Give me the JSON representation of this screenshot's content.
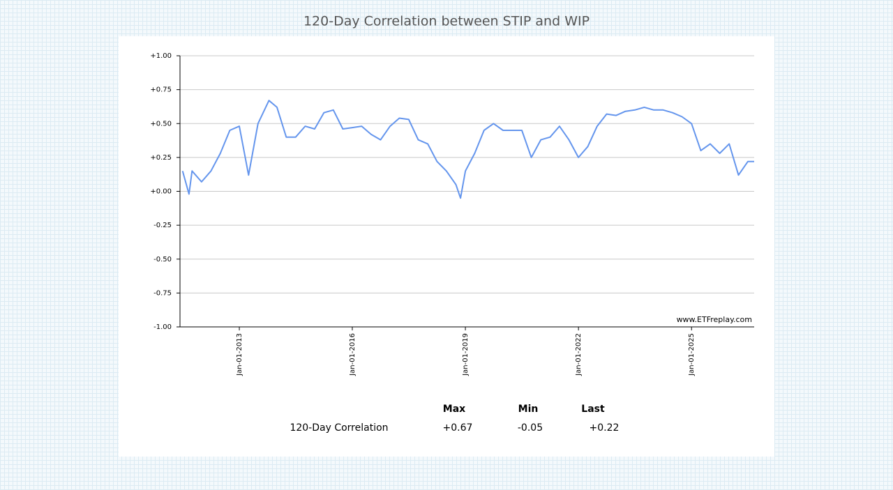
{
  "chart_data": {
    "type": "line",
    "title": "120-Day Correlation between STIP and WIP",
    "watermark": "www.ETFreplay.com",
    "color": "#6495ed",
    "grid": true,
    "xlim": [
      "2011-06-06",
      "2026-08-31"
    ],
    "ylim": [
      -1,
      1
    ],
    "xticks": [
      {
        "value": "2013-01-01",
        "label": "Jan-01-2013"
      },
      {
        "value": "2016-01-01",
        "label": "Jan-01-2016"
      },
      {
        "value": "2019-01-01",
        "label": "Jan-01-2019"
      },
      {
        "value": "2022-01-01",
        "label": "Jan-01-2022"
      },
      {
        "value": "2025-01-01",
        "label": "Jan-01-2025"
      }
    ],
    "yticks": [
      {
        "value": 1,
        "label": "+1.00"
      },
      {
        "value": 0.75,
        "label": "+0.75"
      },
      {
        "value": 0.5,
        "label": "+0.50"
      },
      {
        "value": 0.25,
        "label": "+0.25"
      },
      {
        "value": 0,
        "label": "+0.00"
      },
      {
        "value": -0.25,
        "label": "-0.25"
      },
      {
        "value": -0.5,
        "label": "-0.50"
      },
      {
        "value": -0.75,
        "label": "-0.75"
      },
      {
        "value": -1,
        "label": "-1.00"
      }
    ],
    "x": [
      "2011-07-01",
      "2011-09-01",
      "2011-10-01",
      "2012-01-01",
      "2012-04-01",
      "2012-07-01",
      "2012-10-01",
      "2013-01-01",
      "2013-04-01",
      "2013-07-01",
      "2013-10-15",
      "2014-01-01",
      "2014-04-01",
      "2014-07-01",
      "2014-10-01",
      "2015-01-01",
      "2015-04-01",
      "2015-07-01",
      "2015-10-01",
      "2016-01-01",
      "2016-04-01",
      "2016-07-01",
      "2016-10-01",
      "2017-01-01",
      "2017-04-01",
      "2017-07-01",
      "2017-10-01",
      "2018-01-01",
      "2018-04-01",
      "2018-07-01",
      "2018-10-01",
      "2018-11-15",
      "2019-01-01",
      "2019-04-01",
      "2019-07-01",
      "2019-10-01",
      "2020-01-01",
      "2020-04-01",
      "2020-07-01",
      "2020-10-01",
      "2021-01-01",
      "2021-04-01",
      "2021-07-01",
      "2021-10-01",
      "2022-01-01",
      "2022-04-01",
      "2022-07-01",
      "2022-10-01",
      "2023-01-01",
      "2023-04-01",
      "2023-07-01",
      "2023-10-01",
      "2024-01-01",
      "2024-04-01",
      "2024-07-01",
      "2024-10-01",
      "2025-01-01",
      "2025-04-01",
      "2025-07-01",
      "2025-10-01",
      "2026-01-01",
      "2026-04-01",
      "2026-07-01",
      "2026-08-31"
    ],
    "values": [
      0.15,
      -0.02,
      0.15,
      0.07,
      0.15,
      0.28,
      0.45,
      0.48,
      0.12,
      0.5,
      0.67,
      0.62,
      0.4,
      0.4,
      0.48,
      0.46,
      0.58,
      0.6,
      0.46,
      0.47,
      0.48,
      0.42,
      0.38,
      0.48,
      0.54,
      0.53,
      0.38,
      0.35,
      0.22,
      0.15,
      0.05,
      -0.05,
      0.15,
      0.28,
      0.45,
      0.5,
      0.45,
      0.45,
      0.45,
      0.25,
      0.38,
      0.4,
      0.48,
      0.38,
      0.25,
      0.33,
      0.48,
      0.57,
      0.56,
      0.59,
      0.6,
      0.62,
      0.6,
      0.6,
      0.58,
      0.55,
      0.5,
      0.3,
      0.35,
      0.28,
      0.35,
      0.12,
      0.22,
      0.22
    ]
  },
  "stats": {
    "headers": [
      "Max",
      "Min",
      "Last"
    ],
    "row_label": "120-Day Correlation",
    "values": [
      "+0.67",
      "-0.05",
      "+0.22"
    ]
  }
}
